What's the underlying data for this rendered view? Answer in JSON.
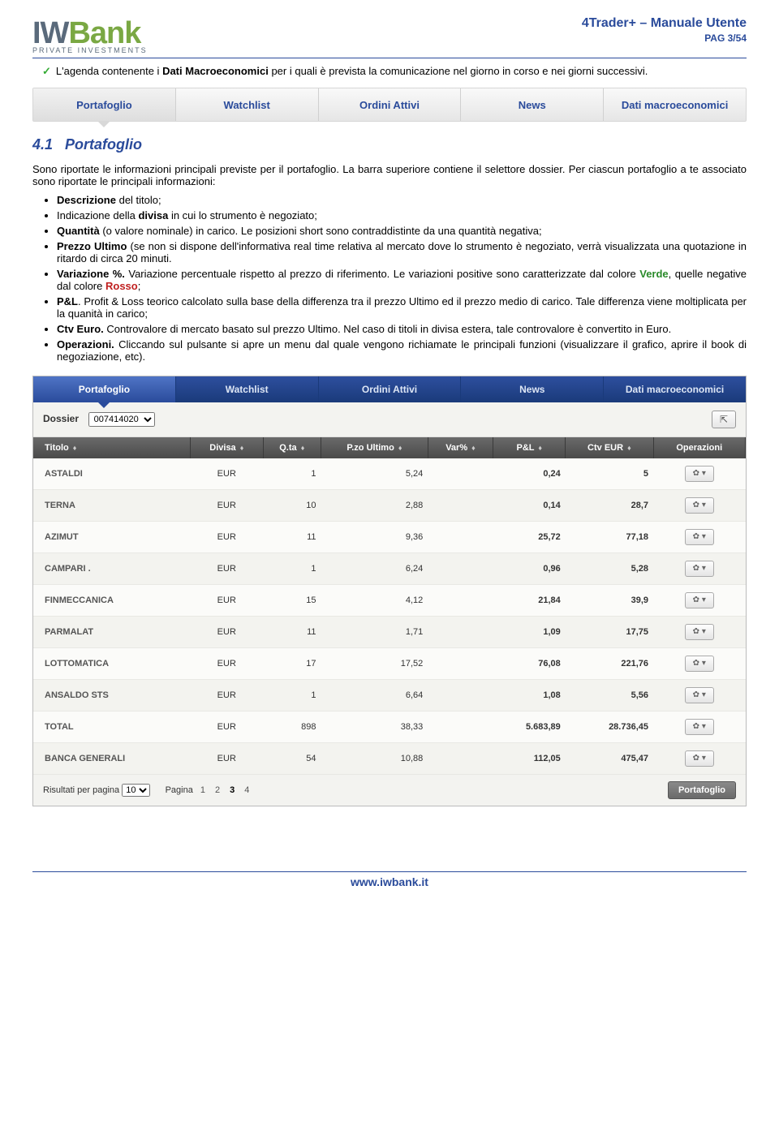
{
  "header": {
    "logo": {
      "i": "IW",
      "bank": "Bank",
      "sub": "PRIVATE INVESTMENTS"
    },
    "title": "4Trader+  – Manuale Utente",
    "page": "PAG 3/54"
  },
  "intro": {
    "text": "L'agenda contenente i Dati Macroeconomici per i quali è prevista la comunicazione nel giorno in corso e nei giorni successivi."
  },
  "tabs1": [
    "Portafoglio",
    "Watchlist",
    "Ordini Attivi",
    "News",
    "Dati macroeconomici"
  ],
  "section": {
    "num": "4.1",
    "title": "Portafoglio"
  },
  "para1": "Sono riportate le informazioni principali previste per il portafoglio. La barra superiore contiene il selettore dossier. Per ciascun portafoglio a te associato sono riportate le principali informazioni:",
  "bullets": [
    {
      "html": "<b>Descrizione</b> del titolo;"
    },
    {
      "html": "Indicazione della <b>divisa</b> in cui lo strumento è negoziato;"
    },
    {
      "html": "<b>Quantità</b> (o valore nominale) in carico. Le posizioni short sono contraddistinte da una quantità negativa;"
    },
    {
      "html": "<b>Prezzo Ultimo</b> (se non si dispone dell'informativa real time relativa al mercato dove lo strumento è negoziato, verrà visualizzata una quotazione in ritardo di circa 20 minuti."
    },
    {
      "html": "<b>Variazione %.</b> Variazione percentuale rispetto al prezzo di riferimento. Le variazioni positive sono caratterizzate dal colore <span class='green-t'>Verde</span>, quelle negative dal colore <span class='red-t'>Rosso</span>;"
    },
    {
      "html": "<b>P&amp;L</b>. Profit &amp; Loss teorico calcolato sulla base della differenza tra il prezzo Ultimo ed il prezzo medio di carico. Tale differenza viene moltiplicata per la quanità in carico;"
    },
    {
      "html": "<b>Ctv Euro.</b> Controvalore di mercato basato sul prezzo Ultimo. Nel caso di titoli in divisa estera, tale controvalore è convertito in Euro."
    },
    {
      "html": "<b>Operazioni.</b> Cliccando sul pulsante si apre un menu dal quale vengono richiamate le principali funzioni (visualizzare il grafico, aprire il book di negoziazione, etc)."
    }
  ],
  "shot": {
    "tabs": [
      "Portafoglio",
      "Watchlist",
      "Ordini Attivi",
      "News",
      "Dati macroeconomici"
    ],
    "dossier": {
      "label": "Dossier",
      "value": "007414020"
    },
    "columns": [
      "Titolo",
      "Divisa",
      "Q.ta",
      "P.zo Ultimo",
      "Var%",
      "P&L",
      "Ctv EUR",
      "Operazioni"
    ],
    "rows": [
      {
        "t": "ASTALDI",
        "d": "EUR",
        "q": "1",
        "p": "5,24",
        "v": "",
        "pl": "0,24",
        "ctv": "5"
      },
      {
        "t": "TERNA",
        "d": "EUR",
        "q": "10",
        "p": "2,88",
        "v": "",
        "pl": "0,14",
        "ctv": "28,7"
      },
      {
        "t": "AZIMUT",
        "d": "EUR",
        "q": "11",
        "p": "9,36",
        "v": "",
        "pl": "25,72",
        "ctv": "77,18"
      },
      {
        "t": "CAMPARI .",
        "d": "EUR",
        "q": "1",
        "p": "6,24",
        "v": "",
        "pl": "0,96",
        "ctv": "5,28"
      },
      {
        "t": "FINMECCANICA",
        "d": "EUR",
        "q": "15",
        "p": "4,12",
        "v": "",
        "pl": "21,84",
        "ctv": "39,9"
      },
      {
        "t": "PARMALAT",
        "d": "EUR",
        "q": "11",
        "p": "1,71",
        "v": "",
        "pl": "1,09",
        "ctv": "17,75"
      },
      {
        "t": "LOTTOMATICA",
        "d": "EUR",
        "q": "17",
        "p": "17,52",
        "v": "",
        "pl": "76,08",
        "ctv": "221,76"
      },
      {
        "t": "ANSALDO STS",
        "d": "EUR",
        "q": "1",
        "p": "6,64",
        "v": "",
        "pl": "1,08",
        "ctv": "5,56"
      },
      {
        "t": "TOTAL",
        "d": "EUR",
        "q": "898",
        "p": "38,33",
        "v": "",
        "pl": "5.683,89",
        "ctv": "28.736,45"
      },
      {
        "t": "BANCA GENERALI",
        "d": "EUR",
        "q": "54",
        "p": "10,88",
        "v": "",
        "pl": "112,05",
        "ctv": "475,47"
      }
    ],
    "pager": {
      "rpp_label": "Risultati per pagina",
      "rpp": "10",
      "page_label": "Pagina",
      "pages": [
        "1",
        "2",
        "3",
        "4"
      ],
      "current": "3",
      "btn": "Portafoglio"
    }
  },
  "footer": {
    "url": "www.iwbank.it"
  }
}
